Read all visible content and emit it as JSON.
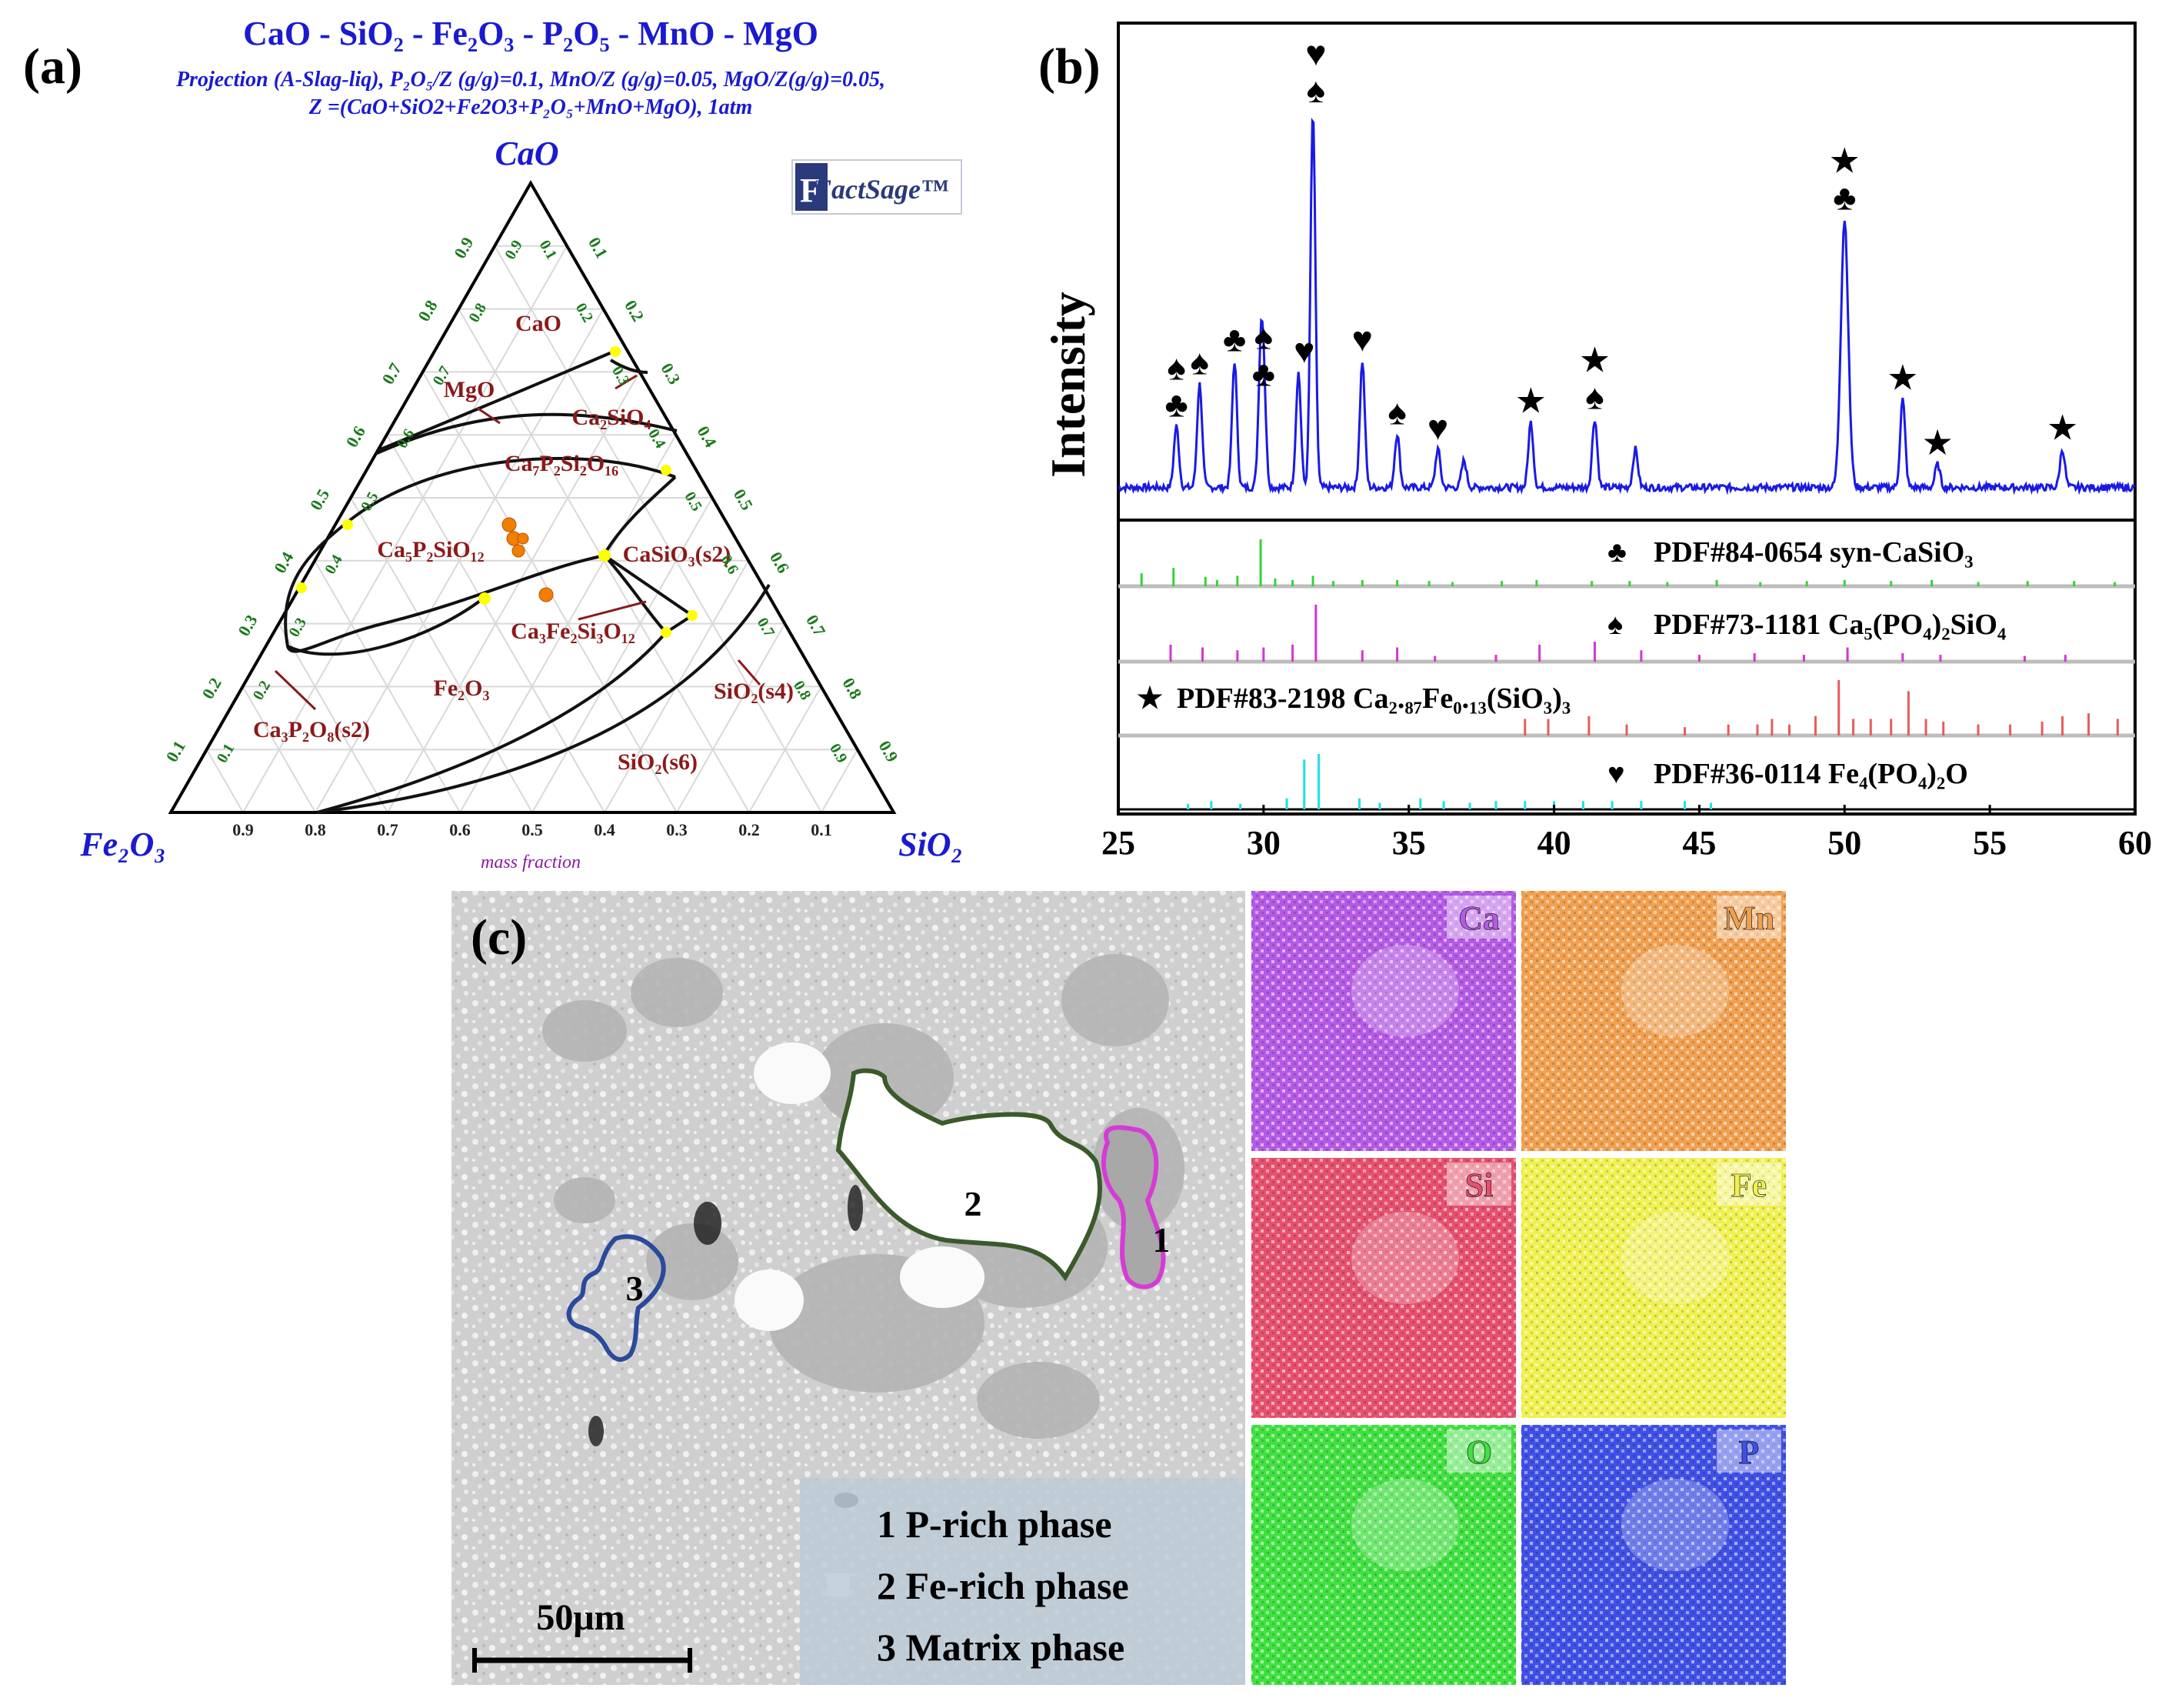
{
  "panel_a": {
    "label": "(a)",
    "title": "CaO - SiO₂ - Fe₂O₃ - P₂O₅ - MnO - MgO",
    "subtitle_1": "Projection (A-Slag-liq), P₂O₅/Z (g/g)=0.1, MnO/Z (g/g)=0.05, MgO/Z(g/g)=0.05,",
    "subtitle_2": "Z =(CaO+SiO2+Fe2O3+P₂O₅+MnO+MgO), 1atm",
    "logo": "FactSage™",
    "apex_top": "CaO",
    "apex_left": "Fe₂O₃",
    "apex_right": "SiO₂",
    "axis_caption": "mass fraction",
    "tick_values": [
      "0.9",
      "0.8",
      "0.7",
      "0.6",
      "0.5",
      "0.4",
      "0.3",
      "0.2",
      "0.1"
    ],
    "phase_labels": {
      "cao": "CaO",
      "mgo": "MgO",
      "ca2sio4": "Ca₂SiO₄",
      "ca7p2si2o16": "Ca₇P₂Si₂O₁₆",
      "ca5p2sio12": "Ca₅P₂SiO₁₂",
      "casio3": "CaSiO₃(s2)",
      "ca3fe2si3o12": "Ca₃Fe₂Si₃O₁₂",
      "fe2o3": "Fe₂O₃",
      "sio2_s4": "SiO₂(s4)",
      "ca3p2o8": "Ca₃P₂O₈(s2)",
      "sio2_s6": "SiO₂(s6)"
    },
    "colors": {
      "title": "#1a1ad0",
      "phase": "#8b1a1a",
      "tick": "#1a7a1a",
      "marker": "#f07f00",
      "node": "#ffff00"
    }
  },
  "panel_b": {
    "label": "(b)",
    "ylabel": "Intensity",
    "x_ticks": [
      "25",
      "30",
      "35",
      "40",
      "45",
      "50",
      "55",
      "60"
    ],
    "legend": [
      {
        "symbol": "♣",
        "text": "PDF#84-0654 syn-CaSiO₃",
        "color": "#36d336"
      },
      {
        "symbol": "♠",
        "text": "PDF#73-1181 Ca₅(PO₄)₂SiO₄",
        "color": "#d336d3"
      },
      {
        "symbol": "★",
        "text": "PDF#83-2198 Ca₂.₈₇Fe₀.₁₃(SiO₃)₃",
        "color": "#e65c5c"
      },
      {
        "symbol": "♥",
        "text": "PDF#36-0114 Fe₄(PO₄)₂O",
        "color": "#1ee0e6"
      }
    ]
  },
  "chart_data": {
    "type": "line",
    "title": "",
    "xlabel": "",
    "ylabel": "Intensity",
    "xlim": [
      25,
      60
    ],
    "ylim": [
      0,
      1
    ],
    "series": [
      {
        "name": "XRD pattern",
        "x": [
          27.0,
          27.8,
          29.0,
          29.9,
          30.0,
          31.2,
          31.7,
          33.4,
          34.6,
          36.0,
          36.9,
          39.2,
          41.4,
          42.8,
          50.0,
          52.0,
          53.2,
          57.5
        ],
        "values": [
          0.16,
          0.27,
          0.33,
          0.29,
          0.24,
          0.3,
          0.98,
          0.33,
          0.14,
          0.1,
          0.07,
          0.17,
          0.18,
          0.1,
          0.7,
          0.23,
          0.06,
          0.1
        ]
      }
    ],
    "peak_markers": [
      {
        "x": 27.0,
        "symbols": "♠♣"
      },
      {
        "x": 27.8,
        "symbols": "♠"
      },
      {
        "x": 29.0,
        "symbols": "♣"
      },
      {
        "x": 30.0,
        "symbols": "♠♣"
      },
      {
        "x": 31.4,
        "symbols": "♥"
      },
      {
        "x": 31.8,
        "symbols": "♥♠"
      },
      {
        "x": 33.4,
        "symbols": "♥"
      },
      {
        "x": 34.6,
        "symbols": "♠"
      },
      {
        "x": 36.0,
        "symbols": "♥"
      },
      {
        "x": 39.2,
        "symbols": "★"
      },
      {
        "x": 41.4,
        "symbols": "★♠"
      },
      {
        "x": 50.0,
        "symbols": "★♣"
      },
      {
        "x": 52.0,
        "symbols": "★"
      },
      {
        "x": 53.2,
        "symbols": "★"
      },
      {
        "x": 57.5,
        "symbols": "★"
      }
    ],
    "reference_sticks": {
      "CaSiO3": [
        [
          25.8,
          0.25
        ],
        [
          26.9,
          0.35
        ],
        [
          28.0,
          0.18
        ],
        [
          28.4,
          0.12
        ],
        [
          29.1,
          0.2
        ],
        [
          29.9,
          0.9
        ],
        [
          30.4,
          0.15
        ],
        [
          31.0,
          0.12
        ],
        [
          31.7,
          0.2
        ],
        [
          32.4,
          0.1
        ],
        [
          33.4,
          0.12
        ],
        [
          34.6,
          0.12
        ],
        [
          35.7,
          0.1
        ],
        [
          36.5,
          0.08
        ],
        [
          38.2,
          0.1
        ],
        [
          39.4,
          0.12
        ],
        [
          41.3,
          0.1
        ],
        [
          42.6,
          0.1
        ],
        [
          43.9,
          0.08
        ],
        [
          45.6,
          0.12
        ],
        [
          47.1,
          0.08
        ],
        [
          48.7,
          0.1
        ],
        [
          50.0,
          0.12
        ],
        [
          51.6,
          0.1
        ],
        [
          53.0,
          0.12
        ],
        [
          54.6,
          0.08
        ],
        [
          56.3,
          0.1
        ],
        [
          57.9,
          0.1
        ],
        [
          59.3,
          0.08
        ]
      ],
      "Ca5PO42SiO4": [
        [
          26.8,
          0.3
        ],
        [
          27.9,
          0.25
        ],
        [
          29.1,
          0.2
        ],
        [
          30.0,
          0.25
        ],
        [
          31.0,
          0.3
        ],
        [
          31.8,
          1.0
        ],
        [
          33.4,
          0.2
        ],
        [
          34.6,
          0.25
        ],
        [
          35.9,
          0.1
        ],
        [
          38.0,
          0.12
        ],
        [
          39.5,
          0.3
        ],
        [
          41.4,
          0.35
        ],
        [
          43.0,
          0.2
        ],
        [
          45.0,
          0.12
        ],
        [
          46.9,
          0.15
        ],
        [
          48.6,
          0.12
        ],
        [
          50.1,
          0.25
        ],
        [
          52.0,
          0.15
        ],
        [
          53.3,
          0.12
        ],
        [
          56.2,
          0.1
        ],
        [
          57.6,
          0.12
        ]
      ],
      "Ca287Fe013SiO33": [
        [
          39.0,
          0.3
        ],
        [
          39.8,
          0.3
        ],
        [
          41.2,
          0.35
        ],
        [
          42.5,
          0.2
        ],
        [
          44.5,
          0.15
        ],
        [
          46.0,
          0.2
        ],
        [
          47.0,
          0.2
        ],
        [
          47.5,
          0.3
        ],
        [
          48.1,
          0.2
        ],
        [
          49.0,
          0.35
        ],
        [
          49.8,
          1.0
        ],
        [
          50.3,
          0.3
        ],
        [
          50.9,
          0.3
        ],
        [
          51.6,
          0.3
        ],
        [
          52.2,
          0.8
        ],
        [
          52.8,
          0.3
        ],
        [
          53.4,
          0.25
        ],
        [
          54.6,
          0.2
        ],
        [
          55.7,
          0.2
        ],
        [
          56.8,
          0.25
        ],
        [
          57.5,
          0.35
        ],
        [
          58.4,
          0.4
        ],
        [
          59.4,
          0.3
        ]
      ],
      "Fe4PO42O": [
        [
          27.4,
          0.1
        ],
        [
          28.2,
          0.15
        ],
        [
          29.2,
          0.1
        ],
        [
          30.8,
          0.2
        ],
        [
          31.4,
          0.9
        ],
        [
          31.9,
          1.0
        ],
        [
          33.3,
          0.2
        ],
        [
          34.0,
          0.12
        ],
        [
          35.4,
          0.2
        ],
        [
          36.2,
          0.15
        ],
        [
          37.1,
          0.12
        ],
        [
          38.0,
          0.15
        ],
        [
          39.0,
          0.15
        ],
        [
          40.0,
          0.15
        ],
        [
          41.0,
          0.15
        ],
        [
          42.0,
          0.15
        ],
        [
          43.0,
          0.15
        ],
        [
          44.5,
          0.15
        ],
        [
          45.4,
          0.12
        ]
      ]
    }
  },
  "panel_c": {
    "label": "(c)",
    "region_labels": [
      "1",
      "2",
      "3"
    ],
    "legend_lines": [
      "1 P-rich phase",
      "2 Fe-rich phase",
      "3 Matrix  phase"
    ],
    "scale_bar": "50μm",
    "eds_maps": [
      {
        "element": "Ca",
        "color": "#b45ae6"
      },
      {
        "element": "Mn",
        "color": "#f0a050"
      },
      {
        "element": "Si",
        "color": "#e6506e"
      },
      {
        "element": "Fe",
        "color": "#f0f050"
      },
      {
        "element": "O",
        "color": "#40e040"
      },
      {
        "element": "P",
        "color": "#4050e6"
      }
    ],
    "outline_colors": {
      "1": "#d43cd4",
      "2": "#3a5a2a",
      "3": "#2a4a9a"
    }
  }
}
